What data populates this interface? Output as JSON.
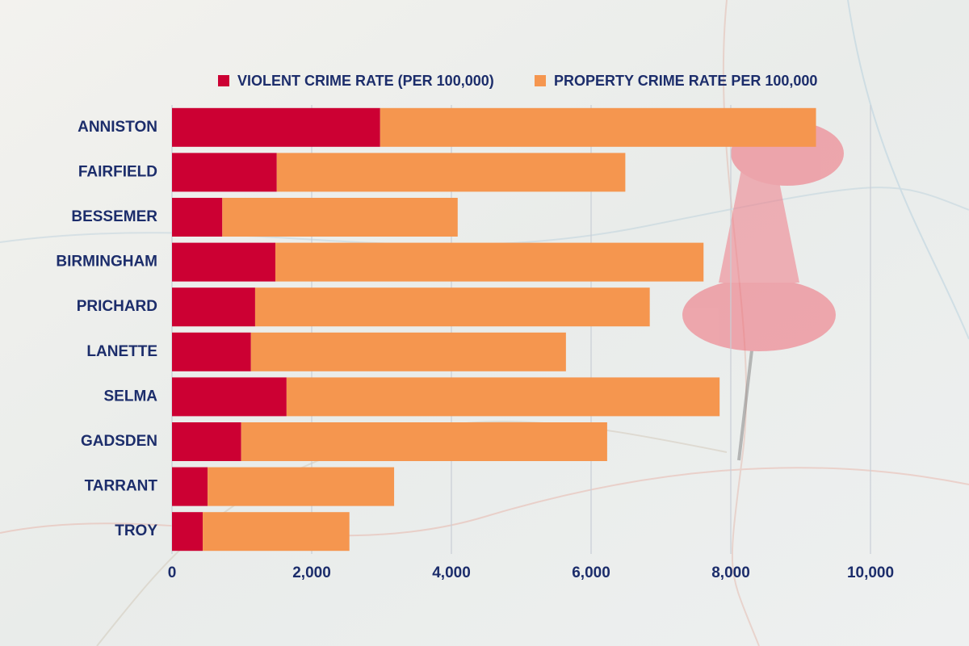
{
  "chart_data": {
    "type": "stacked-barh",
    "categories": [
      "ANNISTON",
      "FAIRFIELD",
      "BESSEMER",
      "BIRMINGHAM",
      "PRICHARD",
      "LANETTE",
      "SELMA",
      "GADSDEN",
      "TARRANT",
      "TROY"
    ],
    "series": [
      {
        "name": "VIOLENT CRIME RATE (PER 100,000)",
        "color": "#cc0033",
        "values": [
          2980,
          1500,
          720,
          1480,
          1190,
          1130,
          1640,
          990,
          510,
          440
        ]
      },
      {
        "name": "PROPERTY CRIME RATE PER 100,000",
        "color": "#f5964f",
        "values": [
          6240,
          4990,
          3370,
          6130,
          5650,
          4510,
          6200,
          5240,
          2670,
          2100
        ]
      }
    ],
    "xlim": [
      0,
      10000
    ],
    "xticks": [
      0,
      {
        "value": 2000,
        "label": "2,000"
      },
      {
        "value": 4000,
        "label": "4,000"
      },
      {
        "value": 6000,
        "label": "6,000"
      },
      {
        "value": 8000,
        "label": "8,000"
      },
      {
        "value": 10000,
        "label": "10,000"
      }
    ],
    "grid": true,
    "legend": "top"
  }
}
